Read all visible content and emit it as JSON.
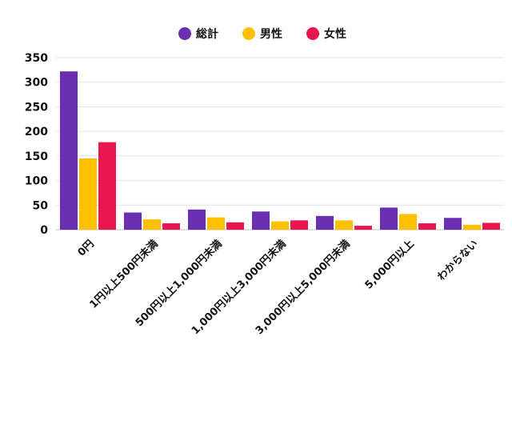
{
  "chart_data": {
    "type": "bar",
    "categories": [
      "0円",
      "1円以上500円未満",
      "500円以上1,000円未満",
      "1,000円以上3,000円未満",
      "3,000円以上5,000円未満",
      "5,000円以上",
      "わからない"
    ],
    "series": [
      {
        "name": "総計",
        "values": [
          322,
          35,
          41,
          37,
          28,
          45,
          24
        ],
        "color": "#6a2fb0"
      },
      {
        "name": "男性",
        "values": [
          145,
          21,
          25,
          17,
          19,
          32,
          10
        ],
        "color": "#ffc000"
      },
      {
        "name": "女性",
        "values": [
          178,
          13,
          15,
          19,
          8,
          13,
          14
        ],
        "color": "#e8174f"
      }
    ],
    "ylim": [
      0,
      350
    ],
    "yticks": [
      0,
      50,
      100,
      150,
      200,
      250,
      300,
      350
    ],
    "grid": true,
    "legend_position": "top-center"
  }
}
